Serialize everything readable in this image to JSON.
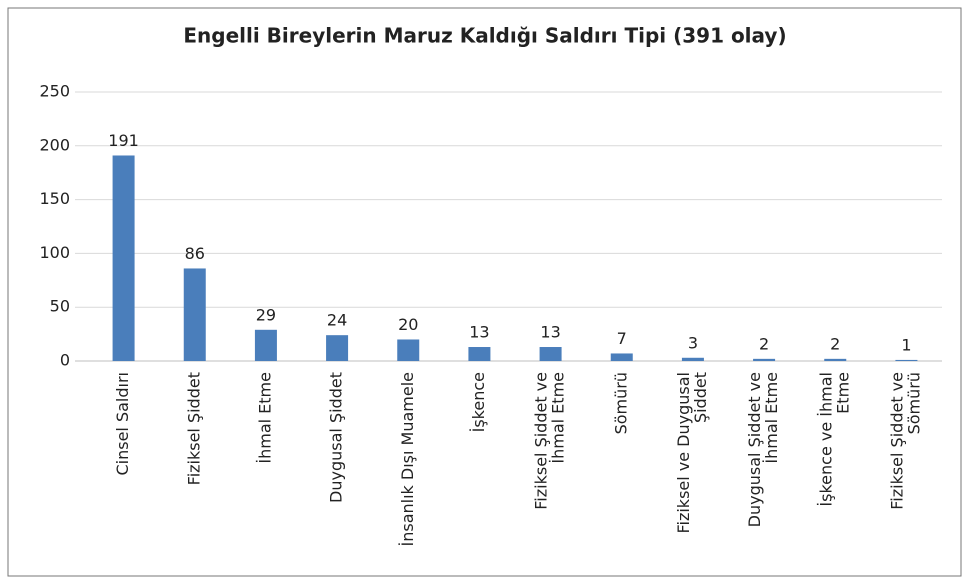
{
  "chart_data": {
    "type": "bar",
    "title": "Engelli Bireylerin Maruz Kaldığı Saldırı Tipi (391 olay)",
    "categories": [
      [
        "Cinsel Saldırı"
      ],
      [
        "Fiziksel Şiddet"
      ],
      [
        "İhmal Etme"
      ],
      [
        "Duygusal Şiddet"
      ],
      [
        "İnsanlık Dışı Muamele"
      ],
      [
        "İşkence"
      ],
      [
        "Fiziksel Şiddet ve",
        "İhmal Etme"
      ],
      [
        "Sömürü"
      ],
      [
        "Fiziksel ve Duygusal",
        "Şiddet"
      ],
      [
        "Duygusal Şiddet ve",
        "İhmal Etme"
      ],
      [
        "İşkence ve İhmal",
        "Etme"
      ],
      [
        "Fiziksel Şiddet ve",
        "Sömürü"
      ]
    ],
    "values": [
      191,
      86,
      29,
      24,
      20,
      13,
      13,
      7,
      3,
      2,
      2,
      1
    ],
    "color": "#4a7ebb",
    "ylim": [
      0,
      250
    ],
    "yticks": [
      0,
      50,
      100,
      150,
      200,
      250
    ],
    "grid": true
  }
}
